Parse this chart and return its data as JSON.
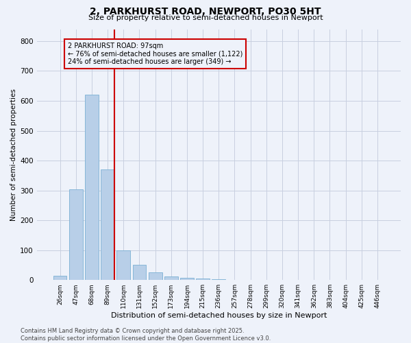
{
  "title": "2, PARKHURST ROAD, NEWPORT, PO30 5HT",
  "subtitle": "Size of property relative to semi-detached houses in Newport",
  "xlabel": "Distribution of semi-detached houses by size in Newport",
  "ylabel": "Number of semi-detached properties",
  "bar_labels": [
    "26sqm",
    "47sqm",
    "68sqm",
    "89sqm",
    "110sqm",
    "131sqm",
    "152sqm",
    "173sqm",
    "194sqm",
    "215sqm",
    "236sqm",
    "257sqm",
    "278sqm",
    "299sqm",
    "320sqm",
    "341sqm",
    "362sqm",
    "383sqm",
    "404sqm",
    "425sqm",
    "446sqm"
  ],
  "bar_values": [
    15,
    303,
    621,
    370,
    100,
    50,
    25,
    12,
    8,
    5,
    2,
    0,
    0,
    0,
    0,
    0,
    0,
    0,
    0,
    0,
    0
  ],
  "bar_color": "#b8cfe8",
  "bar_edge_color": "#7aafd4",
  "vline_color": "#cc0000",
  "annotation_title": "2 PARKHURST ROAD: 97sqm",
  "annotation_line1": "← 76% of semi-detached houses are smaller (1,122)",
  "annotation_line2": "24% of semi-detached houses are larger (349) →",
  "annotation_box_color": "#cc0000",
  "ylim": [
    0,
    840
  ],
  "yticks": [
    0,
    100,
    200,
    300,
    400,
    500,
    600,
    700,
    800
  ],
  "footer_line1": "Contains HM Land Registry data © Crown copyright and database right 2025.",
  "footer_line2": "Contains public sector information licensed under the Open Government Licence v3.0.",
  "bg_color": "#eef2fa",
  "grid_color": "#c8cfe0"
}
